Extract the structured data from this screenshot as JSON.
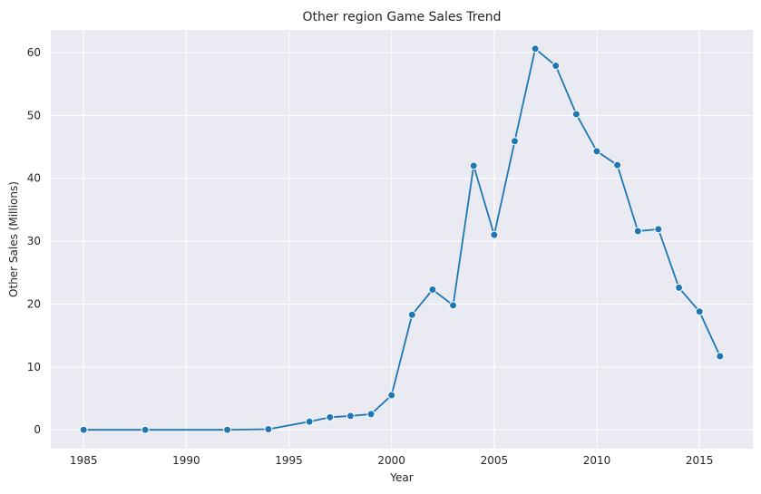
{
  "chart_data": {
    "type": "line",
    "title": "Other region Game Sales Trend",
    "xlabel": "Year",
    "ylabel": "Other Sales (Millions)",
    "xlim": [
      1983.4,
      2017.6
    ],
    "ylim": [
      -3.0,
      63.6
    ],
    "xticks": [
      1985,
      1990,
      1995,
      2000,
      2005,
      2010,
      2015
    ],
    "yticks": [
      0,
      10,
      20,
      30,
      40,
      50,
      60
    ],
    "grid": true,
    "legend": "none",
    "series": [
      {
        "color": "#1f77b4",
        "marker": "circle",
        "x": [
          1985,
          1988,
          1992,
          1994,
          1996,
          1997,
          1998,
          1999,
          2000,
          2001,
          2002,
          2003,
          2004,
          2005,
          2006,
          2007,
          2008,
          2009,
          2010,
          2011,
          2012,
          2013,
          2014,
          2015,
          2016
        ],
        "y": [
          0.0,
          0.0,
          0.0,
          0.1,
          1.3,
          2.0,
          2.2,
          2.5,
          5.5,
          18.3,
          22.3,
          19.8,
          42.0,
          31.0,
          45.9,
          60.6,
          57.9,
          50.2,
          44.3,
          42.1,
          31.6,
          31.9,
          22.6,
          18.8,
          11.7
        ]
      }
    ],
    "colors": {
      "background": "#eaeaf2",
      "grid": "#ffffff",
      "text": "#262626"
    }
  }
}
